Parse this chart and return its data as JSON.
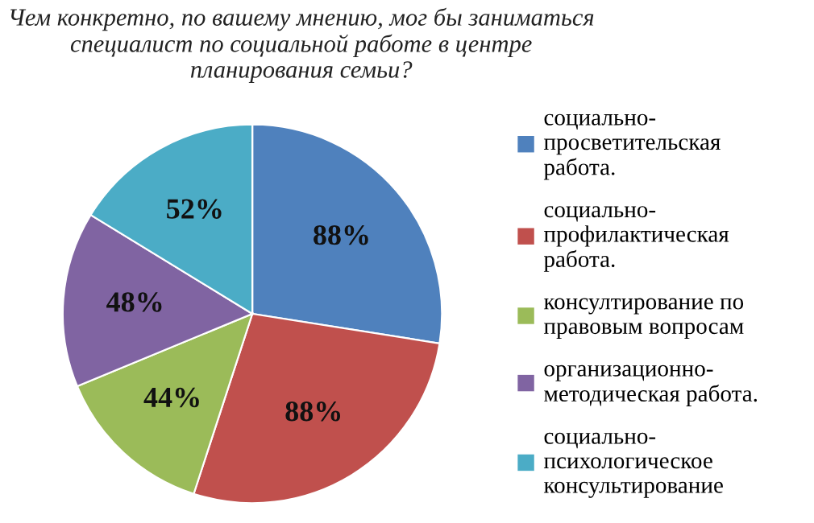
{
  "chart_data": {
    "type": "pie",
    "title": "Чем конкретно, по вашему мнению, мог бы заниматься специалист по социальной работе в центре планирования семьи?",
    "categories": [
      "социально-просветительская работа.",
      "социально-профилактическая работа.",
      "консултирование по правовым вопросам",
      "организационно-методическая работа.",
      "социально-психологическое консультирование"
    ],
    "values": [
      88,
      88,
      44,
      48,
      52
    ],
    "value_labels": [
      "88%",
      "88%",
      "44%",
      "48%",
      "52%"
    ],
    "colors": [
      "#4f81bd",
      "#c0504d",
      "#9bbb59",
      "#8064a2",
      "#4bacc6"
    ],
    "legend": "right"
  }
}
